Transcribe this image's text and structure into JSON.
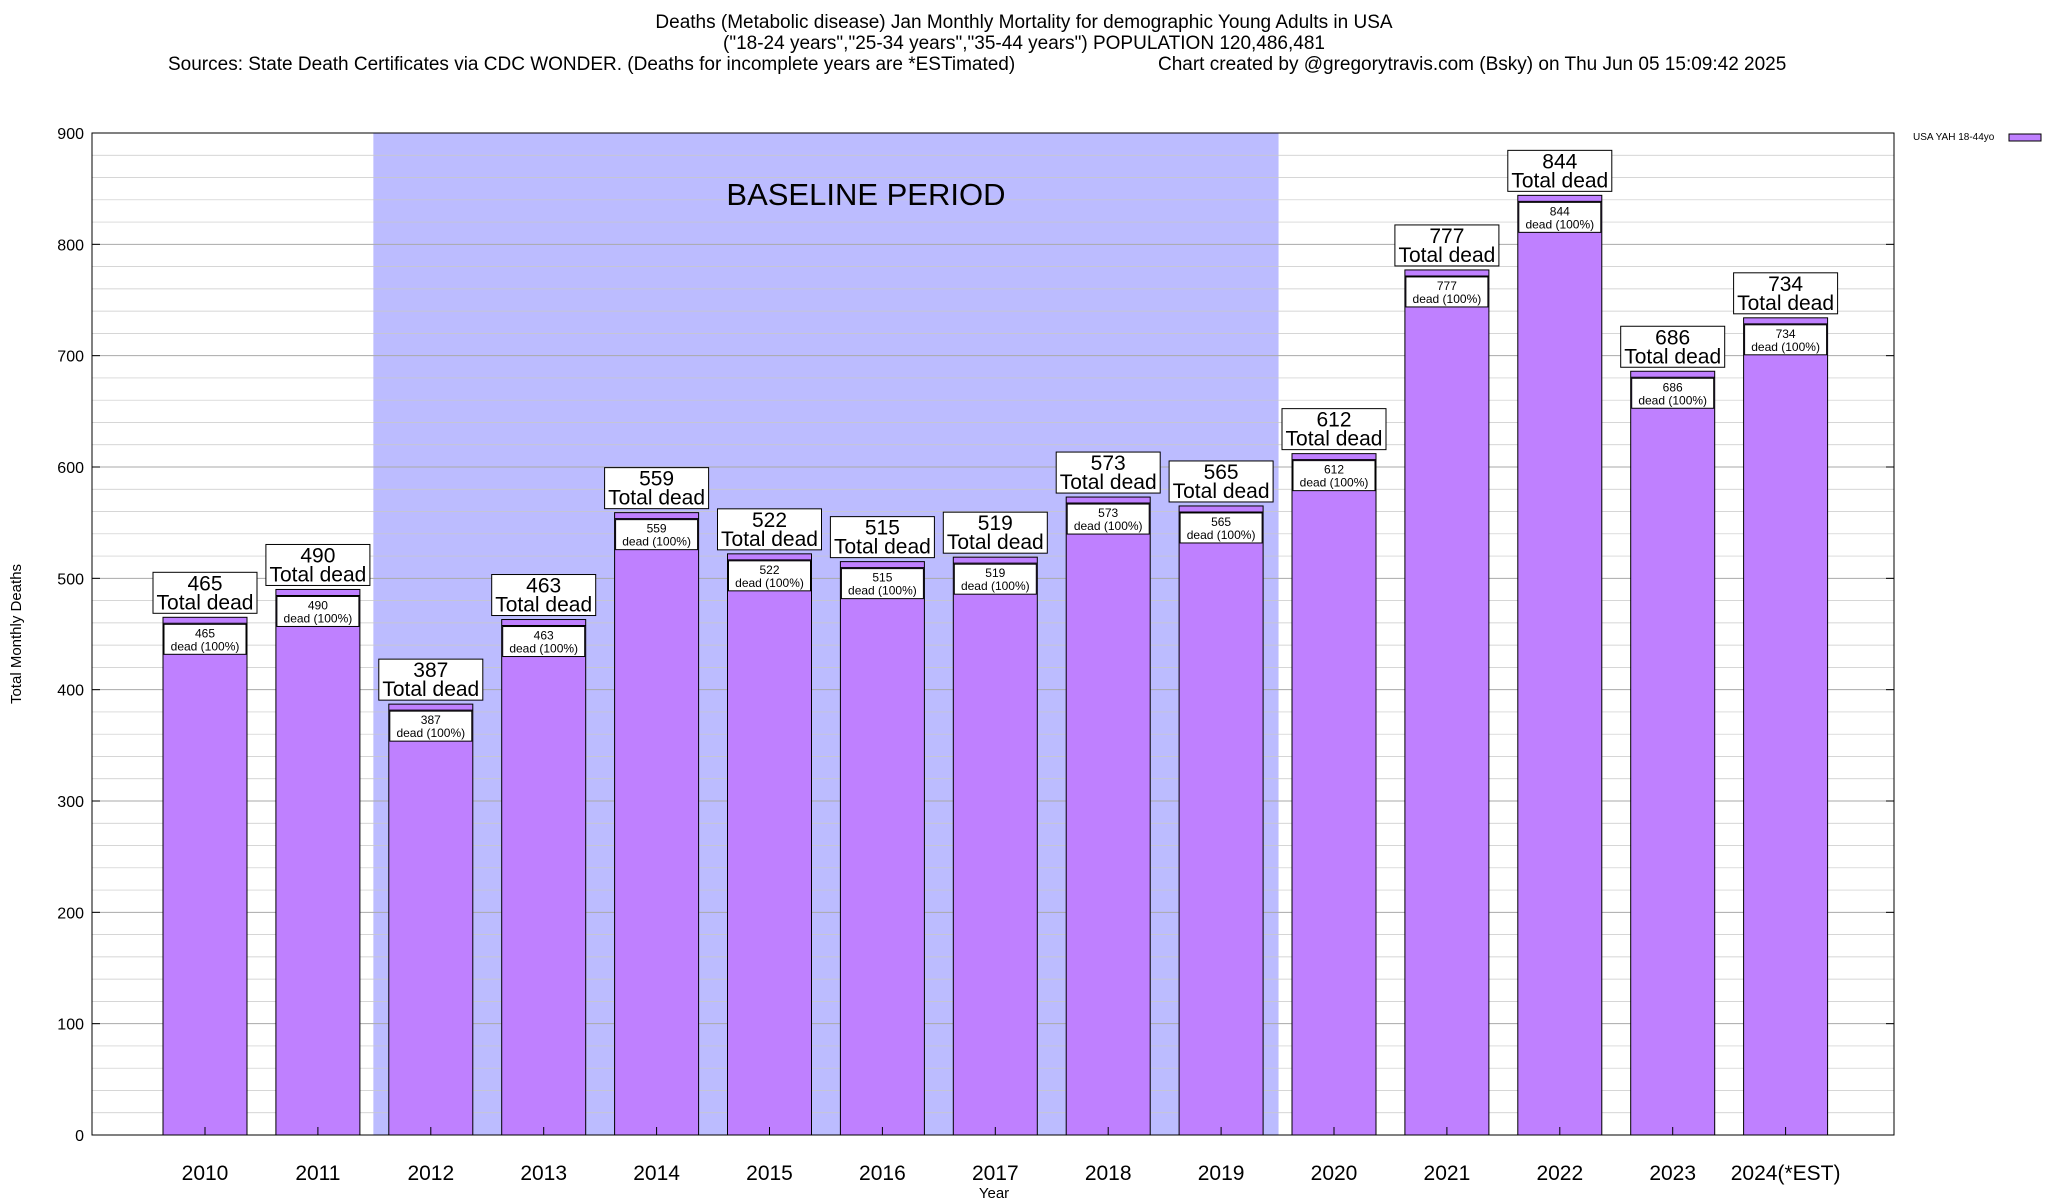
{
  "title_lines": [
    "Deaths (Metabolic disease) Jan Monthly Mortality for demographic Young Adults in USA",
    "(\"18-24 years\",\"25-34 years\",\"35-44 years\") POPULATION 120,486,481"
  ],
  "sources": "Sources: State Death Certificates via CDC WONDER. (Deaths for incomplete years are *ESTimated)",
  "credit": "Chart created by @gregorytravis.com (Bsky) on Thu Jun 05 15:09:42 2025",
  "colors": {
    "bar_fill": "#bf80ff",
    "bar_top": "#a070e0",
    "baseline_shade": "#bcbcff",
    "grid": "#c8c8c8"
  },
  "chart_data": {
    "type": "bar",
    "categories": [
      "2010",
      "2011",
      "2012",
      "2013",
      "2014",
      "2015",
      "2016",
      "2017",
      "2018",
      "2019",
      "2020",
      "2021",
      "2022",
      "2023",
      "2024(*EST)"
    ],
    "series": [
      {
        "name": "USA YAH 18-44yo",
        "values": [
          465,
          490,
          387,
          463,
          559,
          522,
          515,
          519,
          573,
          565,
          612,
          777,
          844,
          686,
          734
        ]
      }
    ],
    "ylim": [
      0,
      900
    ],
    "yticks": [
      0,
      100,
      200,
      300,
      400,
      500,
      600,
      700,
      800,
      900
    ],
    "xlabel": "Year",
    "ylabel": "Total Monthly Deaths",
    "grid": true,
    "legend_position": "top-right",
    "baseline_period": {
      "label": "BASELINE PERIOD",
      "from_category": "2012",
      "to_category": "2019"
    },
    "total_label": "Total dead",
    "inner_label": "dead (100%)"
  }
}
